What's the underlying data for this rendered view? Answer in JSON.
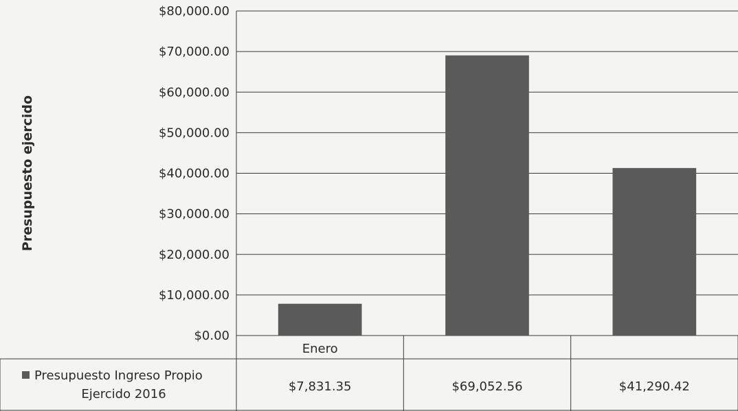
{
  "chart_data": {
    "type": "bar",
    "ylabel": "Presupuesto ejercido",
    "ylim": [
      0,
      80000
    ],
    "yticks": [
      0,
      10000,
      20000,
      30000,
      40000,
      50000,
      60000,
      70000,
      80000
    ],
    "ytick_labels": [
      "$0.00",
      "$10,000.00",
      "$20,000.00",
      "$30,000.00",
      "$40,000.00",
      "$50,000.00",
      "$60,000.00",
      "$70,000.00",
      "$80,000.00"
    ],
    "categories": [
      "Enero",
      "",
      ""
    ],
    "series": [
      {
        "name": "Presupuesto Ingreso Propio Ejercido 2016",
        "name_lines": [
          "Presupuesto Ingreso Propio",
          "Ejercido 2016"
        ],
        "values": [
          7831.35,
          69052.56,
          41290.42
        ],
        "value_labels": [
          "$7,831.35",
          "$69,052.56",
          "$41,290.42"
        ],
        "color": "#5a5a5a"
      }
    ],
    "grid": true,
    "legend": "data-table"
  }
}
